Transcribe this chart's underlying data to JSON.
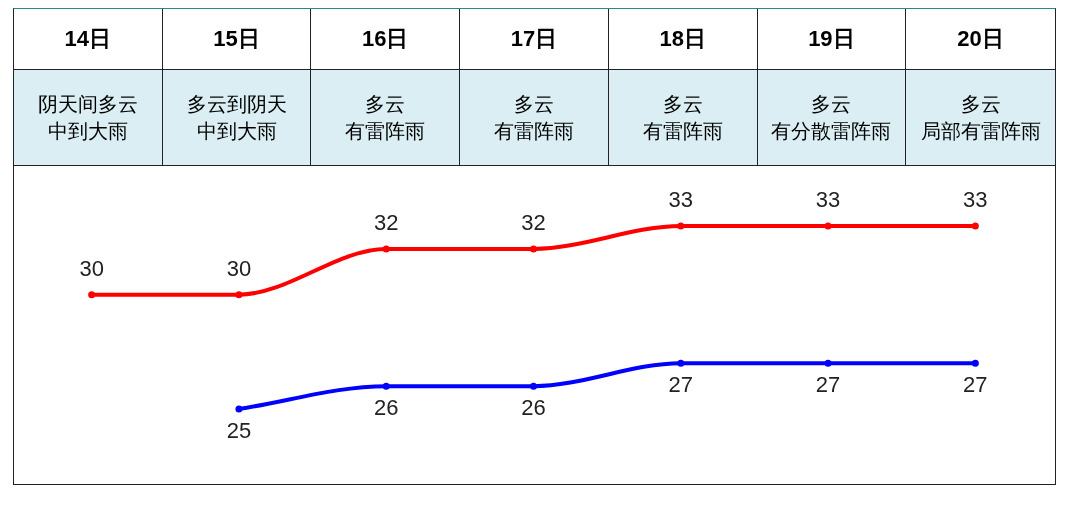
{
  "chart_data": {
    "type": "line",
    "categories": [
      "14日",
      "15日",
      "16日",
      "17日",
      "18日",
      "19日",
      "20日"
    ],
    "series": [
      {
        "color": "#ff0000",
        "values": [
          30,
          30,
          32,
          32,
          33,
          33,
          33
        ]
      },
      {
        "color": "#0000ff",
        "values": [
          null,
          25,
          26,
          26,
          27,
          27,
          27
        ]
      }
    ],
    "annotations": [
      "阴天间多云",
      "中到大雨",
      "多云到阴天",
      "中到大雨",
      "多云",
      "有雷阵雨",
      "多云",
      "有雷阵雨",
      "多云",
      "有雷阵雨",
      "多云",
      "有分散雷阵雨",
      "多云",
      "局部有雷阵雨"
    ],
    "legend": false,
    "data_labels": true,
    "marker": "circle"
  }
}
